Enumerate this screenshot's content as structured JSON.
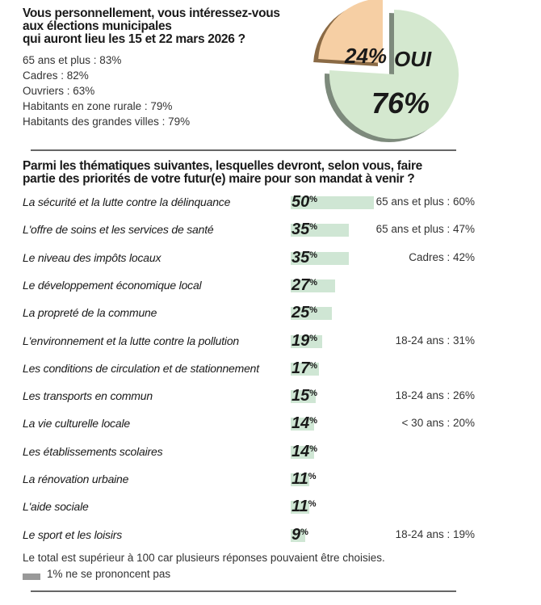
{
  "q1": {
    "title_lines": [
      "Vous personnellement, vous intéressez-vous",
      "aux élections municipales",
      "qui auront lieu les 15 et 22 mars 2026 ?"
    ],
    "subgroups": [
      "65 ans et plus : 83%",
      "Cadres : 82%",
      "Ouvriers : 63%",
      "Habitants en zone rurale : 79%",
      "Habitants des grandes villes : 79%"
    ]
  },
  "chart_data": [
    {
      "type": "pie",
      "slices": [
        {
          "label": "OUI",
          "value": 76,
          "display": "76%",
          "color": "#d4e8cf"
        },
        {
          "label": "",
          "value": 24,
          "display": "24%",
          "color": "#f6cfa4"
        }
      ],
      "side_color": "#7d8a7c",
      "orange_side_color": "#8a6a45"
    },
    {
      "type": "bar",
      "orientation": "horizontal",
      "title_lines": [
        "Parmi les thématiques suivantes, lesquelles devront, selon vous, faire",
        "partie des priorités de votre futur(e) maire pour son mandat à venir ?"
      ],
      "bar_color": "#cfe6d4",
      "items": [
        {
          "label": "La sécurité et la lutte contre la délinquance",
          "value": 50,
          "note": "65 ans et plus : 60%"
        },
        {
          "label": "L'offre de soins et les services de santé",
          "value": 35,
          "note": "65 ans et plus : 47%"
        },
        {
          "label": "Le niveau des impôts locaux",
          "value": 35,
          "note": "Cadres : 42%"
        },
        {
          "label": "Le développement économique local",
          "value": 27,
          "note": ""
        },
        {
          "label": "La propreté de la commune",
          "value": 25,
          "note": ""
        },
        {
          "label": "L'environnement et la lutte contre la pollution",
          "value": 19,
          "note": "18-24 ans : 31%"
        },
        {
          "label": "Les conditions de circulation et de stationnement",
          "value": 17,
          "note": ""
        },
        {
          "label": "Les transports en commun",
          "value": 15,
          "note": "18-24 ans : 26%"
        },
        {
          "label": "La vie culturelle locale",
          "value": 14,
          "note": "< 30 ans : 20%"
        },
        {
          "label": "Les établissements scolaires",
          "value": 14,
          "note": ""
        },
        {
          "label": "La rénovation urbaine",
          "value": 11,
          "note": ""
        },
        {
          "label": "L'aide sociale",
          "value": 11,
          "note": ""
        },
        {
          "label": "Le sport et les loisirs",
          "value": 9,
          "note": "18-24 ans : 19%"
        }
      ]
    }
  ],
  "footer": {
    "note": "Le total est supérieur à 100 car plusieurs réponses pouvaient être choisies.",
    "legend_label": "1% ne se prononcent pas",
    "legend_color": "#999999"
  }
}
